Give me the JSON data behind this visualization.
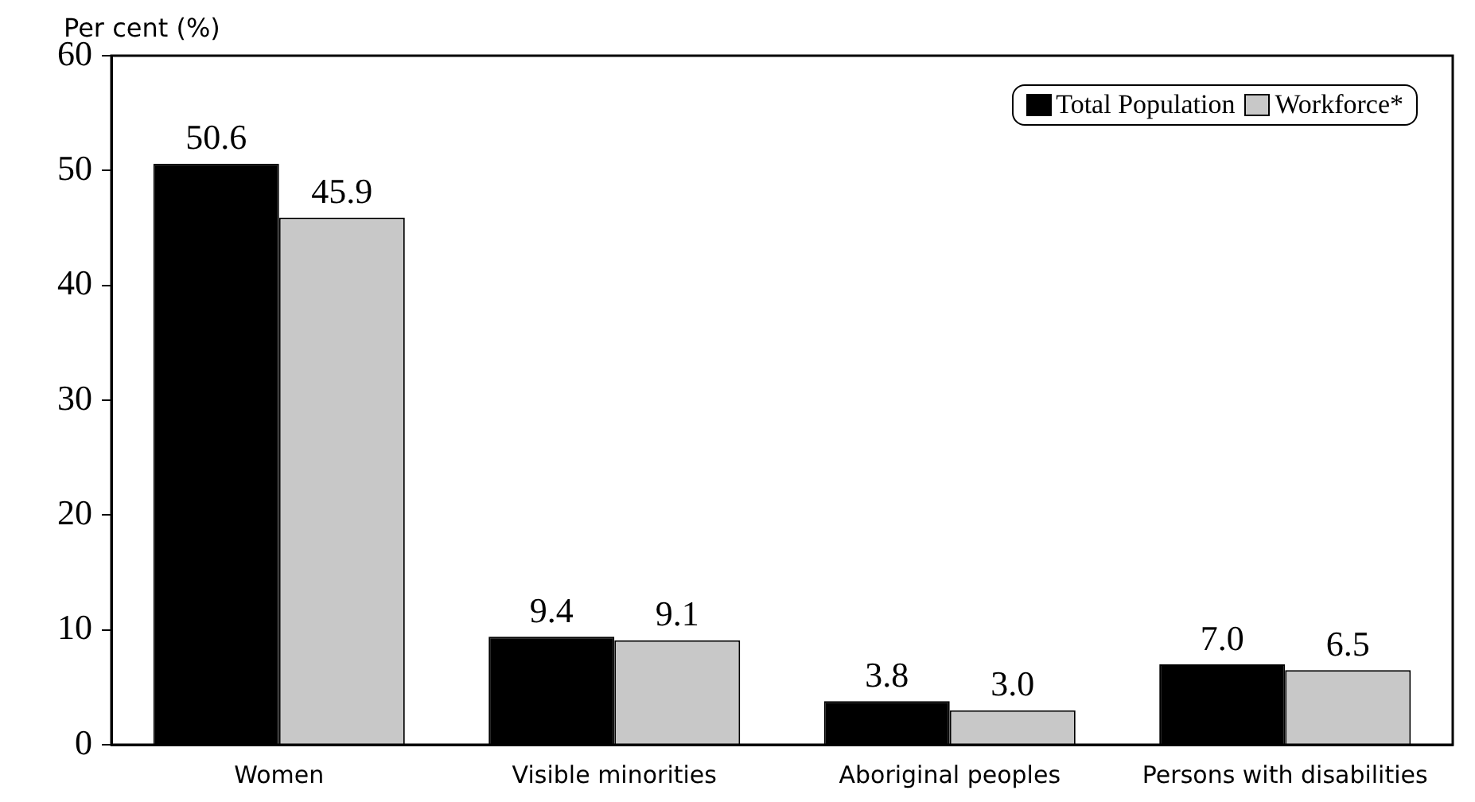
{
  "chart_data": {
    "type": "bar",
    "ylabel": "Per cent (%)",
    "categories": [
      "Women",
      "Visible minorities",
      "Aboriginal peoples",
      "Persons with disabilities"
    ],
    "series": [
      {
        "name": "Total Population",
        "color": "#000000",
        "values": [
          50.6,
          9.4,
          3.8,
          7.0
        ],
        "value_labels": [
          "50.6",
          "9.4",
          "3.8",
          "7.0"
        ]
      },
      {
        "name": "Workforce*",
        "color": "#c8c8c8",
        "values": [
          45.9,
          9.1,
          3.0,
          6.5
        ],
        "value_labels": [
          "45.9",
          "9.1",
          "3.0",
          "6.5"
        ]
      }
    ],
    "ylim": [
      0,
      60
    ],
    "yticks": [
      0,
      10,
      20,
      30,
      40,
      50,
      60
    ],
    "grid": false,
    "legend": "top right"
  }
}
